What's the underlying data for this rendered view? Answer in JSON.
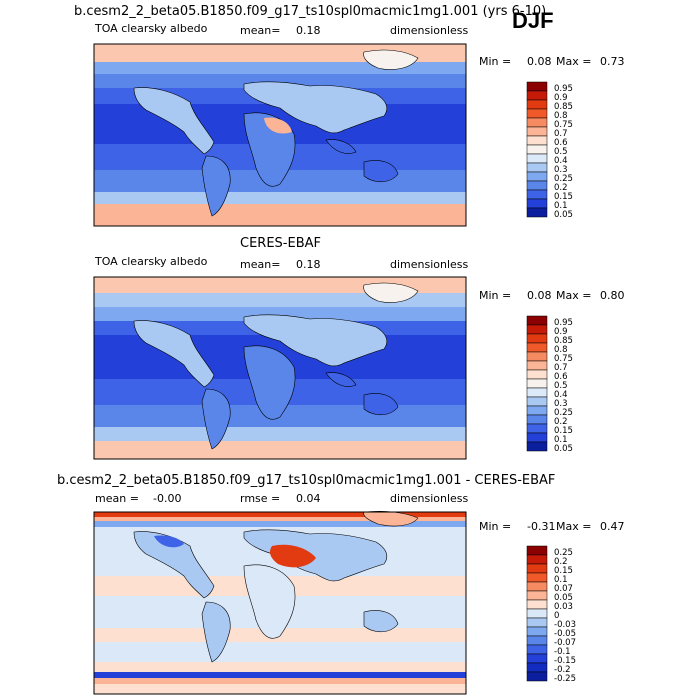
{
  "season": "DJF",
  "panels": [
    {
      "title": "b.cesm2_2_beta05.B1850.f09_g17_ts10spl0macmic1mg1.001 (yrs 6-10)",
      "variable": "TOA clearsky albedo",
      "mean_label": "mean=",
      "mean_value": "0.18",
      "units": "dimensionless",
      "min_label": "Min =",
      "min_value": "0.08",
      "max_label": "Max =",
      "max_value": "0.73",
      "colorbar": [
        "0.95",
        "0.9",
        "0.85",
        "0.8",
        "0.75",
        "0.7",
        "0.6",
        "0.5",
        "0.4",
        "0.3",
        "0.25",
        "0.2",
        "0.15",
        "0.1",
        "0.05"
      ]
    },
    {
      "title": "CERES-EBAF",
      "variable": "TOA clearsky albedo",
      "mean_label": "mean=",
      "mean_value": "0.18",
      "units": "dimensionless",
      "min_label": "Min =",
      "min_value": "0.08",
      "max_label": "Max =",
      "max_value": "0.80",
      "colorbar": [
        "0.95",
        "0.9",
        "0.85",
        "0.8",
        "0.75",
        "0.7",
        "0.6",
        "0.5",
        "0.4",
        "0.3",
        "0.25",
        "0.2",
        "0.15",
        "0.1",
        "0.05"
      ]
    },
    {
      "title": "b.cesm2_2_beta05.B1850.f09_g17_ts10spl0macmic1mg1.001 - CERES-EBAF",
      "mean_label": "mean =",
      "mean_value": "-0.00",
      "rmse_label": "rmse =",
      "rmse_value": "0.04",
      "units": "dimensionless",
      "min_label": "Min =",
      "min_value": "-0.31",
      "max_label": "Max =",
      "max_value": "0.47",
      "colorbar": [
        "0.25",
        "0.2",
        "0.15",
        "0.1",
        "0.07",
        "0.05",
        "0.03",
        "0",
        "-0.03",
        "-0.05",
        "-0.07",
        "-0.1",
        "-0.15",
        "-0.2",
        "-0.25"
      ]
    }
  ],
  "colors": {
    "sequential": [
      "#8b0000",
      "#c61a09",
      "#e23b12",
      "#f05a2a",
      "#f68a60",
      "#fbb495",
      "#fde0cf",
      "#f7f2ee",
      "#dce9f8",
      "#aac9f2",
      "#7ea8ef",
      "#5a86ea",
      "#3e63e6",
      "#2340d8",
      "#0a1e9e"
    ],
    "diverging": [
      "#8b0000",
      "#c61a09",
      "#e23b12",
      "#f05a2a",
      "#f68a60",
      "#fbb495",
      "#fde0cf",
      "#dbe8f7",
      "#aac9f2",
      "#7ea8ef",
      "#5a86ea",
      "#3e63e6",
      "#2340d8",
      "#122cbf",
      "#0a1e9e"
    ]
  },
  "chart_data": [
    {
      "type": "heatmap",
      "title": "b.cesm2_2_beta05.B1850.f09_g17_ts10spl0macmic1mg1.001 (yrs 6-10)",
      "subtitle": "TOA clearsky albedo",
      "units": "dimensionless",
      "mean": 0.18,
      "min": 0.08,
      "max": 0.73,
      "contour_levels": [
        0.05,
        0.1,
        0.15,
        0.2,
        0.25,
        0.3,
        0.4,
        0.5,
        0.6,
        0.7,
        0.75,
        0.8,
        0.85,
        0.9,
        0.95
      ]
    },
    {
      "type": "heatmap",
      "title": "CERES-EBAF",
      "subtitle": "TOA clearsky albedo",
      "units": "dimensionless",
      "mean": 0.18,
      "min": 0.08,
      "max": 0.8,
      "contour_levels": [
        0.05,
        0.1,
        0.15,
        0.2,
        0.25,
        0.3,
        0.4,
        0.5,
        0.6,
        0.7,
        0.75,
        0.8,
        0.85,
        0.9,
        0.95
      ]
    },
    {
      "type": "heatmap",
      "title": "b.cesm2_2_beta05.B1850.f09_g17_ts10spl0macmic1mg1.001 - CERES-EBAF",
      "units": "dimensionless",
      "mean": -0.0,
      "rmse": 0.04,
      "min": -0.31,
      "max": 0.47,
      "contour_levels": [
        -0.25,
        -0.2,
        -0.15,
        -0.1,
        -0.07,
        -0.05,
        -0.03,
        0,
        0.03,
        0.05,
        0.07,
        0.1,
        0.15,
        0.2,
        0.25
      ]
    }
  ]
}
